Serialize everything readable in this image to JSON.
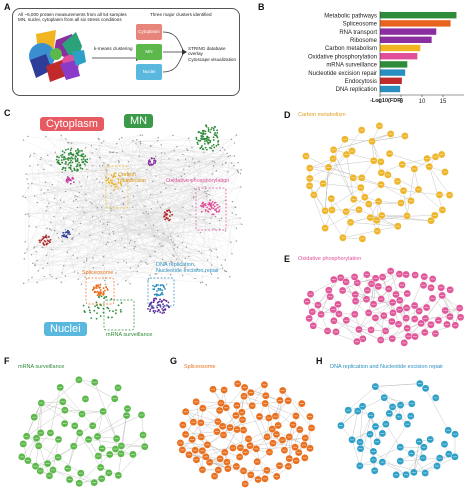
{
  "panels": {
    "A": {
      "letter": "A",
      "note_line1": "All ~5,000 protein measurements from all 54 samples",
      "note_line2": "MN, nuclei, cytoplasm from all six stress conditions",
      "kmeans_label": "k-means clustering",
      "three_clusters_label": "Three major clusters identified",
      "cluster_boxes": [
        "Cytoplasm",
        "MN",
        "Nuclei"
      ],
      "string_label_line1": "STRING database overlay",
      "string_label_line2": "Cytoscape visualization"
    },
    "B": {
      "letter": "B",
      "xlabel": "-Log10(FDR)",
      "chart_data": {
        "type": "bar",
        "orientation": "horizontal",
        "categories": [
          "Metabolic pathways",
          "Spliceosome",
          "RNA transport",
          "Ribosome",
          "Carbon metabolism",
          "Oxidative phosphorylation",
          "mRNA surveillance",
          "Nucleotide excision repair",
          "Endocytosis",
          "DNA replication"
        ],
        "values": [
          18.2,
          16.8,
          13.4,
          12.3,
          9.6,
          8.9,
          6.5,
          6.0,
          5.2,
          4.8
        ],
        "colors": [
          "#2e8b3a",
          "#e8641e",
          "#8b2ea0",
          "#8b2ea0",
          "#f0b520",
          "#e0509a",
          "#2e8b3a",
          "#2a8fbf",
          "#c02a2a",
          "#2a8fbf"
        ],
        "xticks": [
          "0",
          "5",
          "10",
          "15"
        ],
        "xlim": [
          0,
          20
        ]
      }
    },
    "C": {
      "letter": "C",
      "label_cytoplasm": "Cytoplasm",
      "label_mn": "MN",
      "label_nuclei": "Nuclei",
      "label_carbon_line1": "Carbon",
      "label_carbon_line2": "metabolism",
      "label_oxphos": "Oxidative phosphorylation",
      "label_spliceosome": "Spliceosome",
      "label_dna_line1": "DNA replication,",
      "label_dna_line2": "Nucleotide excision repair",
      "label_mrna": "mRNA surveillance"
    },
    "D": {
      "letter": "D",
      "title": "Carbon metabolism",
      "color": "#eeb52a"
    },
    "E": {
      "letter": "E",
      "title": "Oxidative phosphorylation",
      "color": "#e0589a"
    },
    "F": {
      "letter": "F",
      "title": "mRNA surveillance",
      "color": "#5cb84a"
    },
    "G": {
      "letter": "G",
      "title": "Spliceosome",
      "color": "#e8701e"
    },
    "H": {
      "letter": "H",
      "title": "DNA replication and Nucleotide excision repair",
      "color": "#2ea0c8"
    }
  }
}
